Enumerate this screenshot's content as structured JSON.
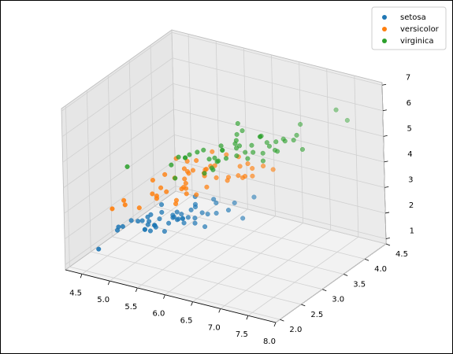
{
  "chart_data": {
    "type": "scatter3d",
    "xlim": [
      4.2,
      8.0
    ],
    "ylim": [
      1.9,
      4.5
    ],
    "zlim": [
      0.8,
      7.1
    ],
    "xticks": [
      4.5,
      {
        "value": 5,
        "label": "5.0"
      },
      5.5,
      {
        "value": 6,
        "label": "6.0"
      },
      6.5,
      {
        "value": 7,
        "label": "7.0"
      },
      7.5,
      {
        "value": 8,
        "label": "8.0"
      }
    ],
    "yticks": [
      {
        "value": 2,
        "label": "2.0"
      },
      2.5,
      {
        "value": 3,
        "label": "3.0"
      },
      3.5,
      {
        "value": 4,
        "label": "4.0"
      },
      4.5
    ],
    "zticks": [
      1,
      2,
      3,
      4,
      5,
      6,
      7
    ],
    "grid": true,
    "legend": "upper right",
    "series": [
      {
        "name": "setosa",
        "color": "#1f77b4",
        "x": [
          5.1,
          4.9,
          4.7,
          4.6,
          5,
          5.4,
          4.6,
          5,
          4.4,
          4.9,
          5.4,
          4.8,
          4.8,
          4.3,
          5.8,
          5.7,
          5.4,
          5.1,
          5.7,
          5.1,
          5.4,
          5.1,
          4.6,
          5.1,
          4.8,
          5,
          5,
          5.2,
          5.2,
          4.7,
          4.8,
          5.4,
          5.2,
          5.5,
          4.9,
          5,
          5.5,
          4.9,
          4.4,
          5.1,
          5,
          4.5,
          4.4,
          5,
          5.1,
          4.8,
          5.1,
          4.6,
          5.3,
          5
        ],
        "y": [
          3.5,
          3,
          3.2,
          3.1,
          3.6,
          3.9,
          3.4,
          3.4,
          2.9,
          3.1,
          3.7,
          3.4,
          3,
          3,
          4,
          4.4,
          3.9,
          3.5,
          3.8,
          3.8,
          3.4,
          3.7,
          3.6,
          3.3,
          3.4,
          3,
          3.4,
          3.5,
          3.4,
          3.2,
          3.1,
          3.4,
          4.1,
          4.2,
          3.1,
          3.2,
          3.5,
          3.1,
          3,
          3.4,
          3.5,
          2.3,
          3.2,
          3.5,
          3.8,
          3,
          3.8,
          3.2,
          3.7,
          3.3
        ],
        "z": [
          1.4,
          1.4,
          1.3,
          1.5,
          1.4,
          1.7,
          1.4,
          1.5,
          1.4,
          1.5,
          1.5,
          1.6,
          1.4,
          1.1,
          1.2,
          1.5,
          1.3,
          1.4,
          1.7,
          1.5,
          1.7,
          1.5,
          1,
          1.7,
          1.9,
          1.6,
          1.6,
          1.5,
          1.4,
          1.6,
          1.6,
          1.5,
          1.5,
          1.4,
          1.5,
          1.2,
          1.3,
          1.5,
          1.3,
          1.5,
          1.3,
          1.3,
          1.3,
          1.6,
          1.9,
          1.4,
          1.6,
          1.4,
          1.5,
          1.4
        ]
      },
      {
        "name": "versicolor",
        "color": "#ff7f0e",
        "x": [
          7,
          6.4,
          6.9,
          5.5,
          6.5,
          5.7,
          6.3,
          4.9,
          6.6,
          5.2,
          5,
          5.9,
          6,
          6.1,
          5.6,
          6.7,
          5.6,
          5.8,
          6.2,
          5.6,
          5.9,
          6.1,
          6.3,
          6.1,
          6.4,
          6.6,
          6.8,
          6.7,
          6,
          5.7,
          5.5,
          5.5,
          5.8,
          6,
          5.4,
          6,
          6.7,
          6.3,
          5.6,
          5.5,
          5.5,
          6.1,
          5.8,
          5,
          5.6,
          5.7,
          5.7,
          6.2,
          5.1,
          5.7
        ],
        "y": [
          3.2,
          3.2,
          3.1,
          2.3,
          2.8,
          2.8,
          3.3,
          2.4,
          2.9,
          2.7,
          2,
          3,
          2.2,
          2.9,
          2.9,
          3.1,
          3,
          2.7,
          2.2,
          2.5,
          3.2,
          2.8,
          2.5,
          2.8,
          2.9,
          3,
          2.8,
          3,
          2.9,
          2.6,
          2.4,
          2.4,
          2.7,
          2.7,
          3,
          3.4,
          3.1,
          2.3,
          3,
          2.5,
          2.6,
          3,
          2.6,
          2.3,
          2.7,
          3,
          2.9,
          2.9,
          2.5,
          2.8
        ],
        "z": [
          4.7,
          4.5,
          4.9,
          4,
          4.6,
          4.5,
          4.7,
          3.3,
          4.6,
          3.9,
          3.5,
          4.2,
          4,
          4.7,
          3.6,
          4.4,
          4.5,
          4.1,
          4.5,
          3.9,
          4.8,
          4,
          4.9,
          4.7,
          4.3,
          4.4,
          4.8,
          5,
          4.5,
          3.5,
          3.8,
          3.7,
          3.9,
          5.1,
          4.5,
          4.5,
          4.7,
          4.4,
          4.1,
          4,
          4.4,
          4.6,
          4,
          3.3,
          4.2,
          4.2,
          4.2,
          4.3,
          3,
          4.1
        ]
      },
      {
        "name": "virginica",
        "color": "#2ca02c",
        "x": [
          6.3,
          5.8,
          7.1,
          6.3,
          6.5,
          7.6,
          4.9,
          7.3,
          6.7,
          7.2,
          6.5,
          6.4,
          6.8,
          5.7,
          5.8,
          6.4,
          6.5,
          7.7,
          7.7,
          6,
          6.9,
          5.6,
          7.7,
          6.3,
          6.7,
          7.2,
          6.2,
          6.1,
          6.4,
          7.2,
          7.4,
          7.9,
          6.4,
          6.3,
          6.1,
          7.7,
          6.3,
          6.4,
          6,
          6.9,
          6.7,
          6.9,
          5.8,
          6.8,
          6.7,
          6.7,
          6.3,
          6.5,
          6.2,
          5.9
        ],
        "y": [
          3.3,
          2.7,
          3,
          2.9,
          3,
          3,
          2.5,
          2.9,
          2.5,
          3.6,
          3.2,
          2.7,
          3,
          2.5,
          2.8,
          3.2,
          3,
          3.8,
          2.6,
          2.2,
          3.2,
          2.8,
          2.8,
          2.7,
          3.3,
          3.2,
          2.8,
          3,
          2.8,
          3,
          2.8,
          3.8,
          2.8,
          2.8,
          2.6,
          3,
          3.4,
          3.1,
          3,
          3.1,
          3.1,
          3.1,
          2.7,
          3.2,
          3.3,
          3,
          2.5,
          3,
          3.4,
          3
        ],
        "z": [
          6,
          5.1,
          5.9,
          5.6,
          5.8,
          6.6,
          4.5,
          6.3,
          5.8,
          6.1,
          5.1,
          5.3,
          5.5,
          5,
          5.1,
          5.3,
          5.5,
          6.7,
          6.9,
          5,
          5.7,
          4.9,
          6.7,
          4.9,
          5.7,
          6,
          4.8,
          4.9,
          5.6,
          5.8,
          6.1,
          6.4,
          5.6,
          5.1,
          5.6,
          6.1,
          5.6,
          5.5,
          4.8,
          5.4,
          5.6,
          5.1,
          5.1,
          5.9,
          5.7,
          5.2,
          5,
          5.2,
          5.4,
          5.1
        ]
      }
    ]
  }
}
